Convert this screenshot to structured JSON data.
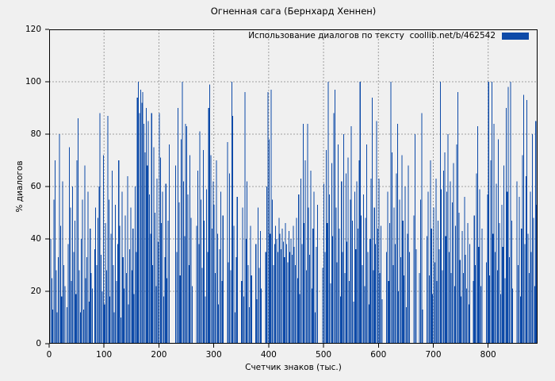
{
  "chart_data": {
    "type": "bar",
    "title": "Огненная сага (Бернхард Хеннен)",
    "xlabel": "Счетчик знаков (тыс.)",
    "ylabel": "% диалогов",
    "legend": {
      "label": "Использование диалогов по тексту  coollib.net/b/462542",
      "position": "top-right-inside"
    },
    "xlim": [
      0,
      890
    ],
    "ylim": [
      0,
      120
    ],
    "xticks": [
      0,
      100,
      200,
      300,
      400,
      500,
      600,
      700,
      800
    ],
    "yticks": [
      0,
      20,
      40,
      60,
      80,
      100,
      120
    ],
    "grid": true,
    "bar_color": "#0d4aa8",
    "grid_color": "#9f9f9f",
    "axis_color": "#000000",
    "background_color": "#f0f0f0",
    "x_step": 2,
    "values": [
      72,
      40,
      25,
      13,
      55,
      70,
      28,
      12,
      33,
      80,
      45,
      18,
      62,
      30,
      22,
      0,
      14,
      38,
      75,
      52,
      24,
      60,
      35,
      47,
      19,
      70,
      86,
      28,
      12,
      40,
      55,
      13,
      68,
      25,
      33,
      58,
      16,
      44,
      27,
      21,
      0,
      36,
      52,
      30,
      48,
      60,
      88,
      34,
      20,
      72,
      15,
      46,
      28,
      87,
      55,
      18,
      42,
      66,
      30,
      12,
      53,
      24,
      38,
      70,
      45,
      10,
      58,
      33,
      21,
      49,
      27,
      64,
      15,
      36,
      52,
      28,
      44,
      19,
      60,
      35,
      94,
      100,
      88,
      97,
      92,
      96,
      84,
      73,
      90,
      68,
      85,
      57,
      42,
      88,
      30,
      75,
      50,
      22,
      63,
      39,
      88,
      71,
      46,
      58,
      18,
      33,
      61,
      25,
      47,
      76,
      0,
      0,
      0,
      0,
      0,
      68,
      35,
      90,
      54,
      26,
      78,
      100,
      62,
      41,
      84,
      83,
      57,
      30,
      72,
      48,
      22,
      0,
      0,
      0,
      45,
      66,
      38,
      81,
      55,
      29,
      74,
      47,
      18,
      59,
      35,
      90,
      99,
      72,
      44,
      62,
      53,
      27,
      70,
      42,
      15,
      36,
      58,
      24,
      49,
      0,
      0,
      0,
      77,
      31,
      65,
      28,
      100,
      87,
      45,
      12,
      33,
      56,
      0,
      0,
      0,
      24,
      52,
      18,
      96,
      40,
      62,
      30,
      14,
      45,
      26,
      0,
      0,
      0,
      38,
      17,
      52,
      29,
      43,
      21,
      0,
      0,
      0,
      35,
      60,
      96,
      78,
      42,
      97,
      55,
      30,
      38,
      45,
      40,
      35,
      48,
      42,
      36,
      44,
      39,
      33,
      46,
      38,
      31,
      43,
      35,
      40,
      34,
      45,
      37,
      30,
      48,
      25,
      57,
      19,
      63,
      38,
      84,
      46,
      70,
      28,
      84,
      52,
      34,
      66,
      21,
      44,
      58,
      12,
      37,
      53,
      0,
      0,
      0,
      0,
      29,
      61,
      35,
      74,
      46,
      100,
      57,
      23,
      69,
      41,
      88,
      97,
      52,
      31,
      76,
      44,
      18,
      62,
      35,
      80,
      27,
      65,
      39,
      71,
      24,
      55,
      83,
      47,
      16,
      58,
      36,
      62,
      44,
      70,
      100,
      49,
      30,
      57,
      22,
      48,
      76,
      35,
      15,
      40,
      63,
      94,
      28,
      52,
      38,
      85,
      44,
      63,
      27,
      45,
      17,
      0,
      0,
      0,
      35,
      58,
      24,
      46,
      100,
      73,
      30,
      52,
      38,
      65,
      84,
      20,
      55,
      33,
      72,
      47,
      26,
      60,
      14,
      42,
      68,
      35,
      0,
      0,
      0,
      49,
      80,
      36,
      0,
      0,
      27,
      55,
      88,
      13,
      0,
      0,
      0,
      41,
      58,
      26,
      70,
      44,
      19,
      52,
      31,
      63,
      24,
      47,
      36,
      100,
      59,
      28,
      66,
      73,
      41,
      58,
      80,
      35,
      62,
      27,
      54,
      69,
      22,
      45,
      76,
      96,
      50,
      32,
      18,
      43,
      27,
      56,
      34,
      21,
      46,
      15,
      38,
      0,
      0,
      24,
      49,
      30,
      65,
      83,
      37,
      59,
      22,
      44,
      0,
      0,
      0,
      31,
      57,
      100,
      26,
      70,
      100,
      42,
      84,
      35,
      61,
      28,
      78,
      46,
      19,
      53,
      37,
      68,
      25,
      90,
      58,
      98,
      33,
      100,
      47,
      21,
      0,
      0,
      0,
      62,
      30,
      56,
      18,
      44,
      72,
      95,
      38,
      64,
      93,
      42,
      27,
      58,
      35,
      80,
      48,
      22,
      85,
      53
    ]
  }
}
